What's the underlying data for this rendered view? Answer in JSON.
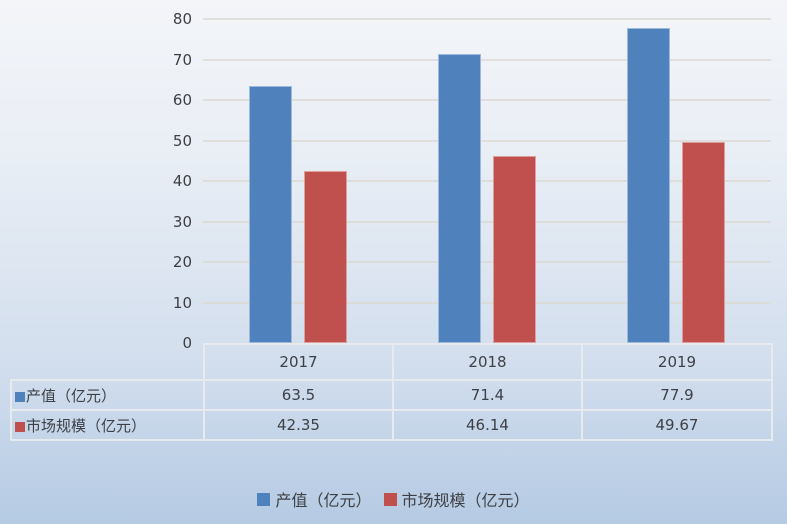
{
  "chart_data": {
    "type": "bar",
    "categories": [
      "2017",
      "2018",
      "2019"
    ],
    "series": [
      {
        "name": "产值（亿元）",
        "color": "#4F81BD",
        "values": [
          63.5,
          71.4,
          77.9
        ]
      },
      {
        "name": "市场规模（亿元）",
        "color": "#C0504D",
        "values": [
          42.35,
          46.14,
          49.67
        ]
      }
    ],
    "title": "",
    "xlabel": "",
    "ylabel": "",
    "ylim": [
      0,
      80
    ],
    "ytick_step": 10,
    "grid": true,
    "legend_position": "bottom",
    "data_table_shown": true
  },
  "legend": {
    "items": [
      {
        "label": "产值（亿元）",
        "color": "#4F81BD"
      },
      {
        "label": "市场规模（亿元）",
        "color": "#C0504D"
      }
    ]
  },
  "colors": {
    "bar_blue": "#4F81BD",
    "bar_red": "#C0504D",
    "gridline": "#dbd8d2",
    "table_border": "#e7eaef",
    "text": "#3d4046",
    "background_top": "#f3f5f9",
    "background_bottom": "#b5cae3"
  }
}
